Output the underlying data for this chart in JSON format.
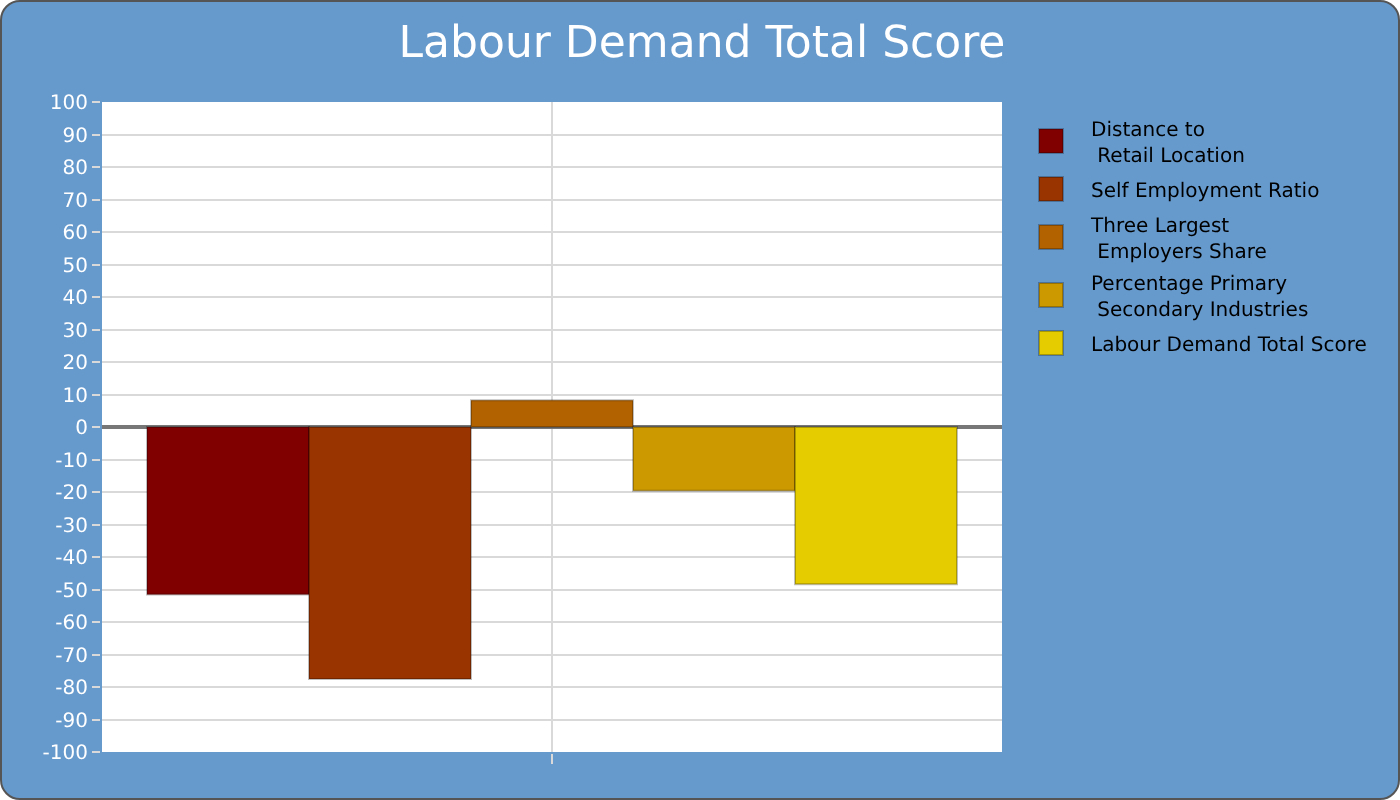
{
  "chart_data": {
    "type": "bar",
    "title": "Labour Demand Total Score",
    "categories": [
      null
    ],
    "series": [
      {
        "name": "Distance to\nRetail Location",
        "color": "#800000",
        "values": [
          -51.5
        ]
      },
      {
        "name": "Self Employment Ratio",
        "color": "#993300",
        "values": [
          -77.5
        ]
      },
      {
        "name": "Three Largest\nEmployers Share",
        "color": "#b36200",
        "values": [
          8.2
        ]
      },
      {
        "name": "Percentage Primary\nSecondary Industries",
        "color": "#cc9900",
        "values": [
          -19.6
        ]
      },
      {
        "name": "Labour Demand Total Score",
        "color": "#e5cc00",
        "values": [
          -48.4
        ]
      }
    ],
    "ylim": [
      -100,
      100
    ],
    "yticks": [
      -100,
      -90,
      -80,
      -70,
      -60,
      -50,
      -40,
      -30,
      -20,
      -10,
      0,
      10,
      20,
      30,
      40,
      50,
      60,
      70,
      80,
      90,
      100
    ],
    "grid": true,
    "legend": "top right"
  }
}
